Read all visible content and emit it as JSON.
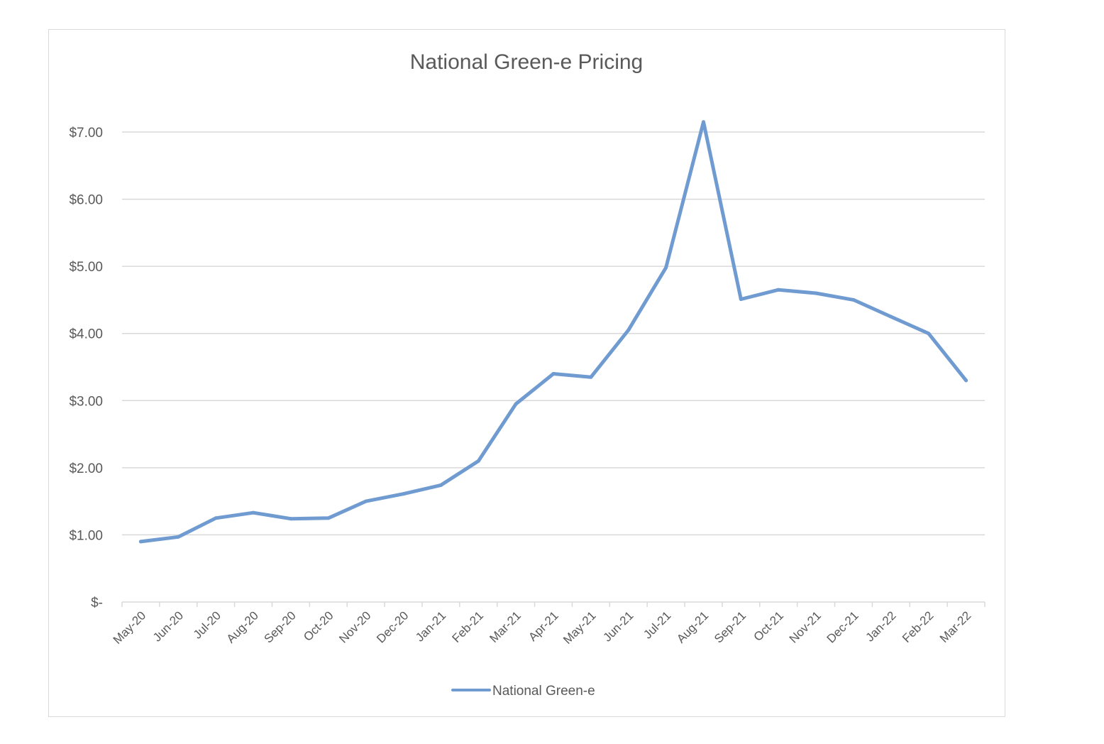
{
  "chart_data": {
    "type": "line",
    "title": "National Green-e Pricing",
    "xlabel": "",
    "ylabel": "",
    "categories": [
      "May-20",
      "Jun-20",
      "Jul-20",
      "Aug-20",
      "Sep-20",
      "Oct-20",
      "Nov-20",
      "Dec-20",
      "Jan-21",
      "Feb-21",
      "Mar-21",
      "Apr-21",
      "May-21",
      "Jun-21",
      "Jul-21",
      "Aug-21",
      "Sep-21",
      "Oct-21",
      "Nov-21",
      "Dec-21",
      "Jan-22",
      "Feb-22",
      "Mar-22"
    ],
    "series": [
      {
        "name": "National Green-e",
        "color": "#6f9bd1",
        "values": [
          0.9,
          0.97,
          1.25,
          1.33,
          1.24,
          1.25,
          1.5,
          1.61,
          1.74,
          2.1,
          2.95,
          3.4,
          3.35,
          4.05,
          4.98,
          7.15,
          4.51,
          4.65,
          4.6,
          4.5,
          4.25,
          4.0,
          3.3
        ]
      }
    ],
    "yticks": [
      {
        "value": 0,
        "label": "$-"
      },
      {
        "value": 1,
        "label": "$1.00"
      },
      {
        "value": 2,
        "label": "$2.00"
      },
      {
        "value": 3,
        "label": "$3.00"
      },
      {
        "value": 4,
        "label": "$4.00"
      },
      {
        "value": 5,
        "label": "$5.00"
      },
      {
        "value": 6,
        "label": "$6.00"
      },
      {
        "value": 7,
        "label": "$7.00"
      }
    ],
    "ylim": [
      0,
      7
    ],
    "grid": true,
    "legend": "bottom",
    "gridColor": "#d9d9d9",
    "textColor": "#595959"
  }
}
